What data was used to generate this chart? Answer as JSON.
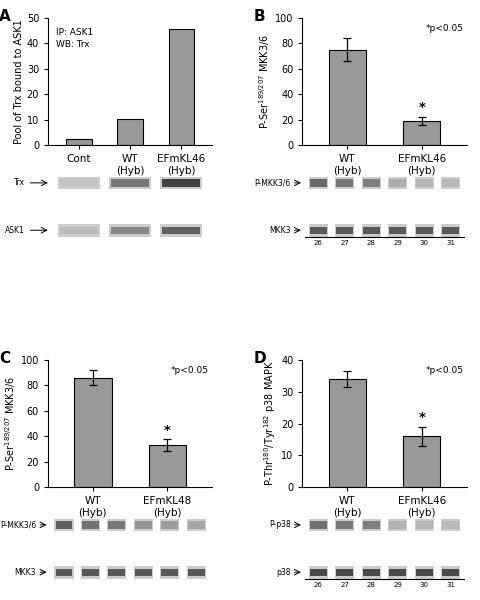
{
  "panel_A": {
    "categories": [
      "Cont",
      "WT\n(Hyb)",
      "EFmKL46\n(Hyb)"
    ],
    "values": [
      2.5,
      10.2,
      45.5
    ],
    "ylabel": "Pool of Trx bound to ASK1",
    "ylim": [
      0,
      50
    ],
    "yticks": [
      0,
      10,
      20,
      30,
      40,
      50
    ],
    "annotation_text": "IP: ASK1\nWB: Trx",
    "label": "A",
    "wb_rows": [
      "Trx",
      "ASK1"
    ],
    "n_lanes": 3,
    "lane_labels": null,
    "wb_band_intensities_row0": [
      0.05,
      0.55,
      0.9
    ],
    "wb_band_intensities_row1": [
      0.1,
      0.45,
      0.7
    ]
  },
  "panel_B": {
    "categories": [
      "WT\n(Hyb)",
      "EFmKL46\n(Hyb)"
    ],
    "values": [
      75.0,
      19.0
    ],
    "errors": [
      9.0,
      3.5
    ],
    "ylabel": "P-Ser$^{189/207}$ MKK3/6",
    "ylim": [
      0,
      100
    ],
    "yticks": [
      0,
      20,
      40,
      60,
      80,
      100
    ],
    "annotation_text": "*p<0.05",
    "star_bar_idx": 1,
    "label": "B",
    "wb_rows": [
      "P-MKK3/6",
      "MKK3"
    ],
    "n_lanes": 6,
    "lane_labels": [
      "26",
      "27",
      "28",
      "29",
      "30",
      "31"
    ],
    "group_line_mid": 3,
    "wb_band_intensities_row0": [
      0.65,
      0.55,
      0.5,
      0.2,
      0.15,
      0.12
    ],
    "wb_band_intensities_row1": [
      0.75,
      0.75,
      0.75,
      0.75,
      0.75,
      0.75
    ]
  },
  "panel_C": {
    "categories": [
      "WT\n(Hyb)",
      "EFmKL48\n(Hyb)"
    ],
    "values": [
      86.0,
      33.0
    ],
    "errors": [
      6.0,
      4.5
    ],
    "ylabel": "P-Ser$^{189/207}$ MKK3/6",
    "ylim": [
      0,
      100
    ],
    "yticks": [
      0,
      20,
      40,
      60,
      80,
      100
    ],
    "annotation_text": "*p<0.05",
    "star_bar_idx": 1,
    "label": "C",
    "wb_rows": [
      "P-MKK3/6",
      "MKK3"
    ],
    "n_lanes": 6,
    "lane_labels": null,
    "wb_band_intensities_row0": [
      0.7,
      0.6,
      0.55,
      0.35,
      0.3,
      0.25
    ],
    "wb_band_intensities_row1": [
      0.75,
      0.75,
      0.75,
      0.75,
      0.75,
      0.75
    ]
  },
  "panel_D": {
    "categories": [
      "WT\n(Hyb)",
      "EFmKL46\n(Hyb)"
    ],
    "values": [
      34.0,
      16.0
    ],
    "errors": [
      2.5,
      3.0
    ],
    "ylabel": "P-Thr$^{180}$/Tyr$^{182}$ p38 MAPK",
    "ylim": [
      0,
      40
    ],
    "yticks": [
      0,
      10,
      20,
      30,
      40
    ],
    "annotation_text": "*p<0.05",
    "star_bar_idx": 1,
    "label": "D",
    "wb_rows": [
      "P-p38",
      "p38"
    ],
    "n_lanes": 6,
    "lane_labels": [
      "26",
      "27",
      "28",
      "29",
      "30",
      "31"
    ],
    "group_line_mid": 3,
    "wb_band_intensities_row0": [
      0.6,
      0.55,
      0.5,
      0.18,
      0.15,
      0.12
    ],
    "wb_band_intensities_row1": [
      0.85,
      0.85,
      0.85,
      0.85,
      0.85,
      0.85
    ]
  },
  "bar_color": "#999999",
  "bar_edge_color": "#000000",
  "bar_width": 0.5,
  "font_size": 7.5,
  "label_font_size": 11,
  "tick_font_size": 7,
  "wb_bg_color": "#cccccc",
  "wb_band_color": "#333333"
}
